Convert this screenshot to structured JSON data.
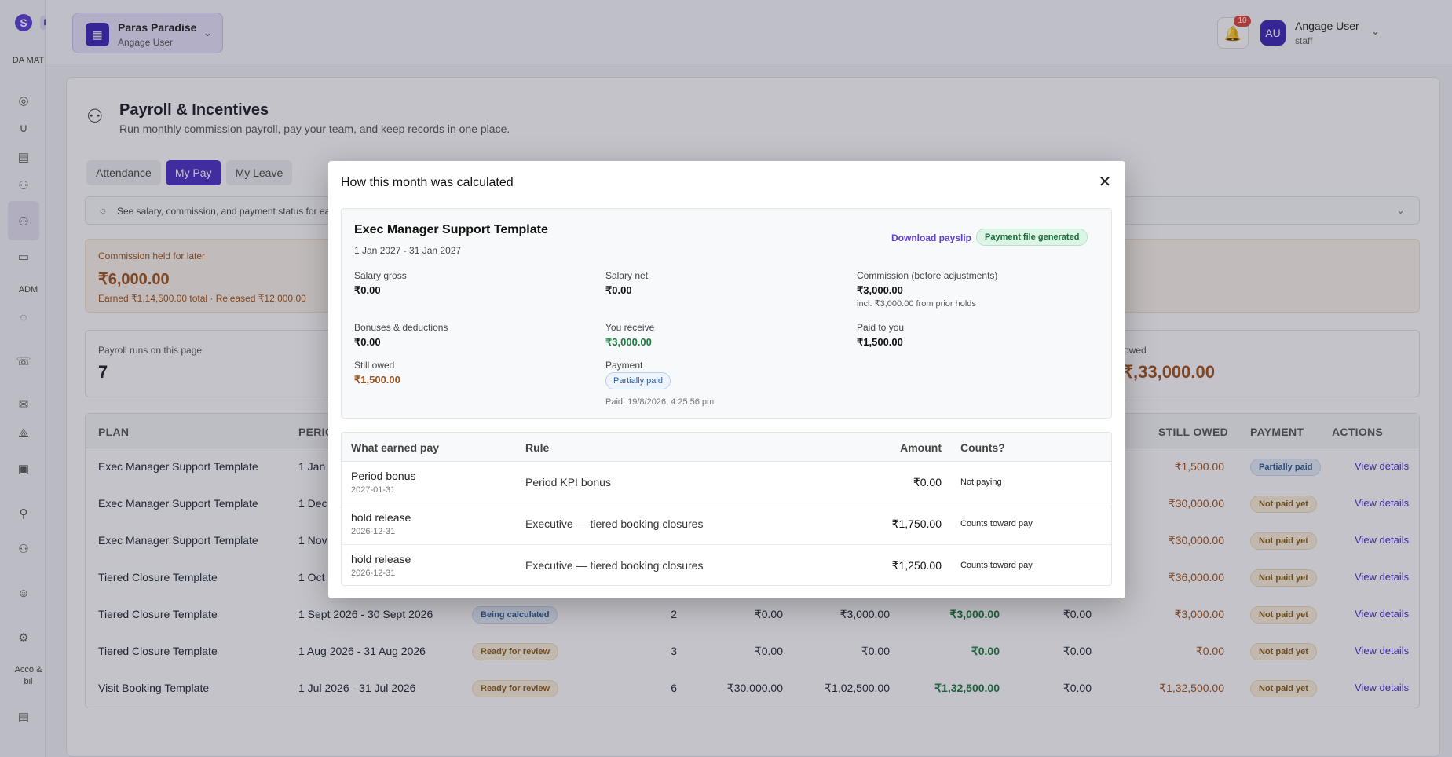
{
  "sidebar": {
    "logo": "S",
    "section_data": "DA MAT",
    "section_admin": "ADM",
    "section_account": "Acco & bil"
  },
  "header": {
    "workspace_name": "Paras Paradise",
    "workspace_sub": "Angage User",
    "notification_count": "10",
    "avatar_initials": "AU",
    "user_name": "Angage User",
    "user_role": "staff"
  },
  "page": {
    "title": "Payroll & Incentives",
    "subtitle": "Run monthly commission payroll, pay your team, and keep records in one place.",
    "tabs": [
      {
        "label": "Attendance"
      },
      {
        "label": "My Pay"
      },
      {
        "label": "My Leave"
      }
    ],
    "info_text": "See salary, commission, and payment status for ea",
    "held": {
      "label": "Commission held for later",
      "amount": "₹6,000.00",
      "sub": "Earned ₹1,14,500.00 total · Released ₹12,000.00"
    },
    "stats": {
      "runs_label": "Payroll runs on this page",
      "runs_value": "7",
      "owed_label": "owed",
      "owed_value": "₹,33,000.00"
    }
  },
  "runs": {
    "headers": [
      "PLAN",
      "PERIC",
      "STILL OWED",
      "PAYMENT",
      "ACTIONS"
    ],
    "rows": [
      {
        "plan": "Exec Manager Support Template",
        "period": "1 Jan 2",
        "status": "",
        "count": "",
        "c1": "",
        "c2": "",
        "c3": "",
        "c4": "",
        "owed": "₹1,500.00",
        "payment": "Partially paid",
        "action": "View details"
      },
      {
        "plan": "Exec Manager Support Template",
        "period": "1 Dec",
        "status": "",
        "count": "",
        "c1": "",
        "c2": "",
        "c3": "",
        "c4": "",
        "owed": "₹30,000.00",
        "payment": "Not paid yet",
        "action": "View details"
      },
      {
        "plan": "Exec Manager Support Template",
        "period": "1 Nov",
        "status": "",
        "count": "",
        "c1": "",
        "c2": "",
        "c3": "",
        "c4": "",
        "owed": "₹30,000.00",
        "payment": "Not paid yet",
        "action": "View details"
      },
      {
        "plan": "Tiered Closure Template",
        "period": "1 Oct",
        "status": "",
        "count": "",
        "c1": "",
        "c2": "",
        "c3": "",
        "c4": "",
        "owed": "₹36,000.00",
        "payment": "Not paid yet",
        "action": "View details"
      },
      {
        "plan": "Tiered Closure Template",
        "period": "1 Sept 2026 - 30 Sept 2026",
        "status": "Being calculated",
        "count": "2",
        "c1": "₹0.00",
        "c2": "₹3,000.00",
        "c3": "₹3,000.00",
        "c4": "₹0.00",
        "owed": "₹3,000.00",
        "payment": "Not paid yet",
        "action": "View details"
      },
      {
        "plan": "Tiered Closure Template",
        "period": "1 Aug 2026 - 31 Aug 2026",
        "status": "Ready for review",
        "count": "3",
        "c1": "₹0.00",
        "c2": "₹0.00",
        "c3": "₹0.00",
        "c4": "₹0.00",
        "owed": "₹0.00",
        "payment": "Not paid yet",
        "action": "View details"
      },
      {
        "plan": "Visit Booking Template",
        "period": "1 Jul 2026 - 31 Jul 2026",
        "status": "Ready for review",
        "count": "6",
        "c1": "₹30,000.00",
        "c2": "₹1,02,500.00",
        "c3": "₹1,32,500.00",
        "c4": "₹0.00",
        "owed": "₹1,32,500.00",
        "payment": "Not paid yet",
        "action": "View details"
      }
    ]
  },
  "modal": {
    "title": "How this month was calculated",
    "card": {
      "plan": "Exec Manager Support Template",
      "period": "1 Jan 2027 - 31 Jan 2027",
      "download": "Download payslip",
      "badge": "Payment file generated",
      "salary_gross_label": "Salary gross",
      "salary_gross": "₹0.00",
      "salary_net_label": "Salary net",
      "salary_net": "₹0.00",
      "commission_label": "Commission (before adjustments)",
      "commission": "₹3,000.00",
      "commission_note": "incl. ₹3,000.00 from prior holds",
      "bonuses_label": "Bonuses & deductions",
      "bonuses": "₹0.00",
      "receive_label": "You receive",
      "receive": "₹3,000.00",
      "paid_label": "Paid to you",
      "paid": "₹1,500.00",
      "owed_label": "Still owed",
      "owed": "₹1,500.00",
      "payment_label": "Payment",
      "payment_status": "Partially paid",
      "paid_time": "Paid: 19/8/2026, 4:25:56 pm"
    },
    "table": {
      "headers": {
        "what": "What earned pay",
        "rule": "Rule",
        "amount": "Amount",
        "counts": "Counts?"
      },
      "rows": [
        {
          "name": "Period bonus",
          "date": "2027-01-31",
          "rule": "Period KPI bonus",
          "amount": "₹0.00",
          "counts": "Not paying"
        },
        {
          "name": "hold release",
          "date": "2026-12-31",
          "rule": "Executive — tiered booking closures",
          "amount": "₹1,750.00",
          "counts": "Counts toward pay"
        },
        {
          "name": "hold release",
          "date": "2026-12-31",
          "rule": "Executive — tiered booking closures",
          "amount": "₹1,250.00",
          "counts": "Counts toward pay"
        }
      ]
    }
  }
}
